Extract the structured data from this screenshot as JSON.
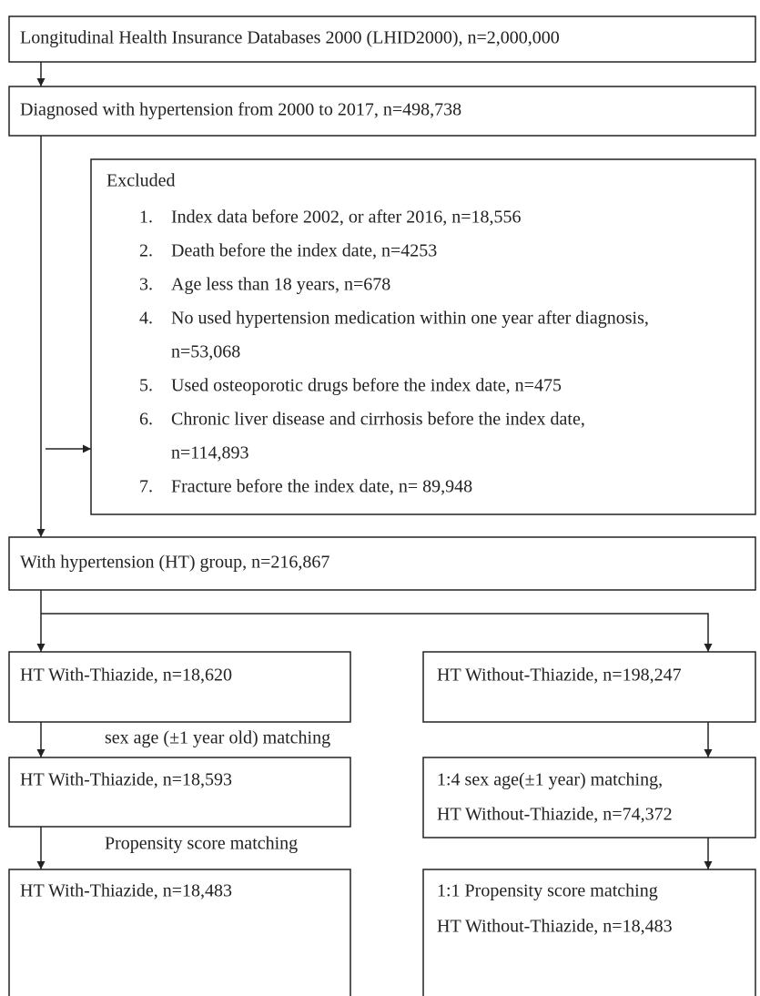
{
  "nodes": [
    {
      "label": "Longitudinal Health Insurance Databases 2000 (LHID2000), n=2,000,000"
    },
    {
      "label": "Diagnosed with hypertension from 2000 to 2017, n=498,738"
    },
    {
      "label": "With hypertension (HT) group, n=216,867"
    },
    {
      "label": "HT With-Thiazide, n=18,620"
    },
    {
      "label": "HT Without-Thiazide, n=198,247"
    },
    {
      "label": "HT With-Thiazide, n=18,593"
    },
    {
      "lines": [
        "1:4 sex age(±1 year) matching,",
        "HT Without-Thiazide, n=74,372"
      ]
    },
    {
      "label": "HT With-Thiazide, n=18,483"
    },
    {
      "lines": [
        "1:1 Propensity score matching",
        "HT Without-Thiazide, n=18,483"
      ]
    }
  ],
  "excluded": {
    "heading": "Excluded",
    "items": [
      {
        "number": "1.",
        "lines": [
          "Index data before 2002, or after 2016, n=18,556"
        ]
      },
      {
        "number": "2.",
        "lines": [
          "Death before the index date, n=4253"
        ]
      },
      {
        "number": "3.",
        "lines": [
          "Age less than 18 years, n=678"
        ]
      },
      {
        "number": "4.",
        "lines": [
          "No used hypertension medication within one year after diagnosis,",
          "n=53,068"
        ]
      },
      {
        "number": "5.",
        "lines": [
          "Used osteoporotic drugs before the index date, n=475"
        ]
      },
      {
        "number": "6.",
        "lines": [
          "Chronic liver disease and cirrhosis before the index date,",
          "n=114,893"
        ]
      },
      {
        "number": "7.",
        "lines": [
          "Fracture before the index date, n= 89,948"
        ]
      }
    ]
  },
  "edges": [
    {
      "label": "sex age (±1 year old) matching"
    },
    {
      "label": "Propensity score matching"
    }
  ]
}
